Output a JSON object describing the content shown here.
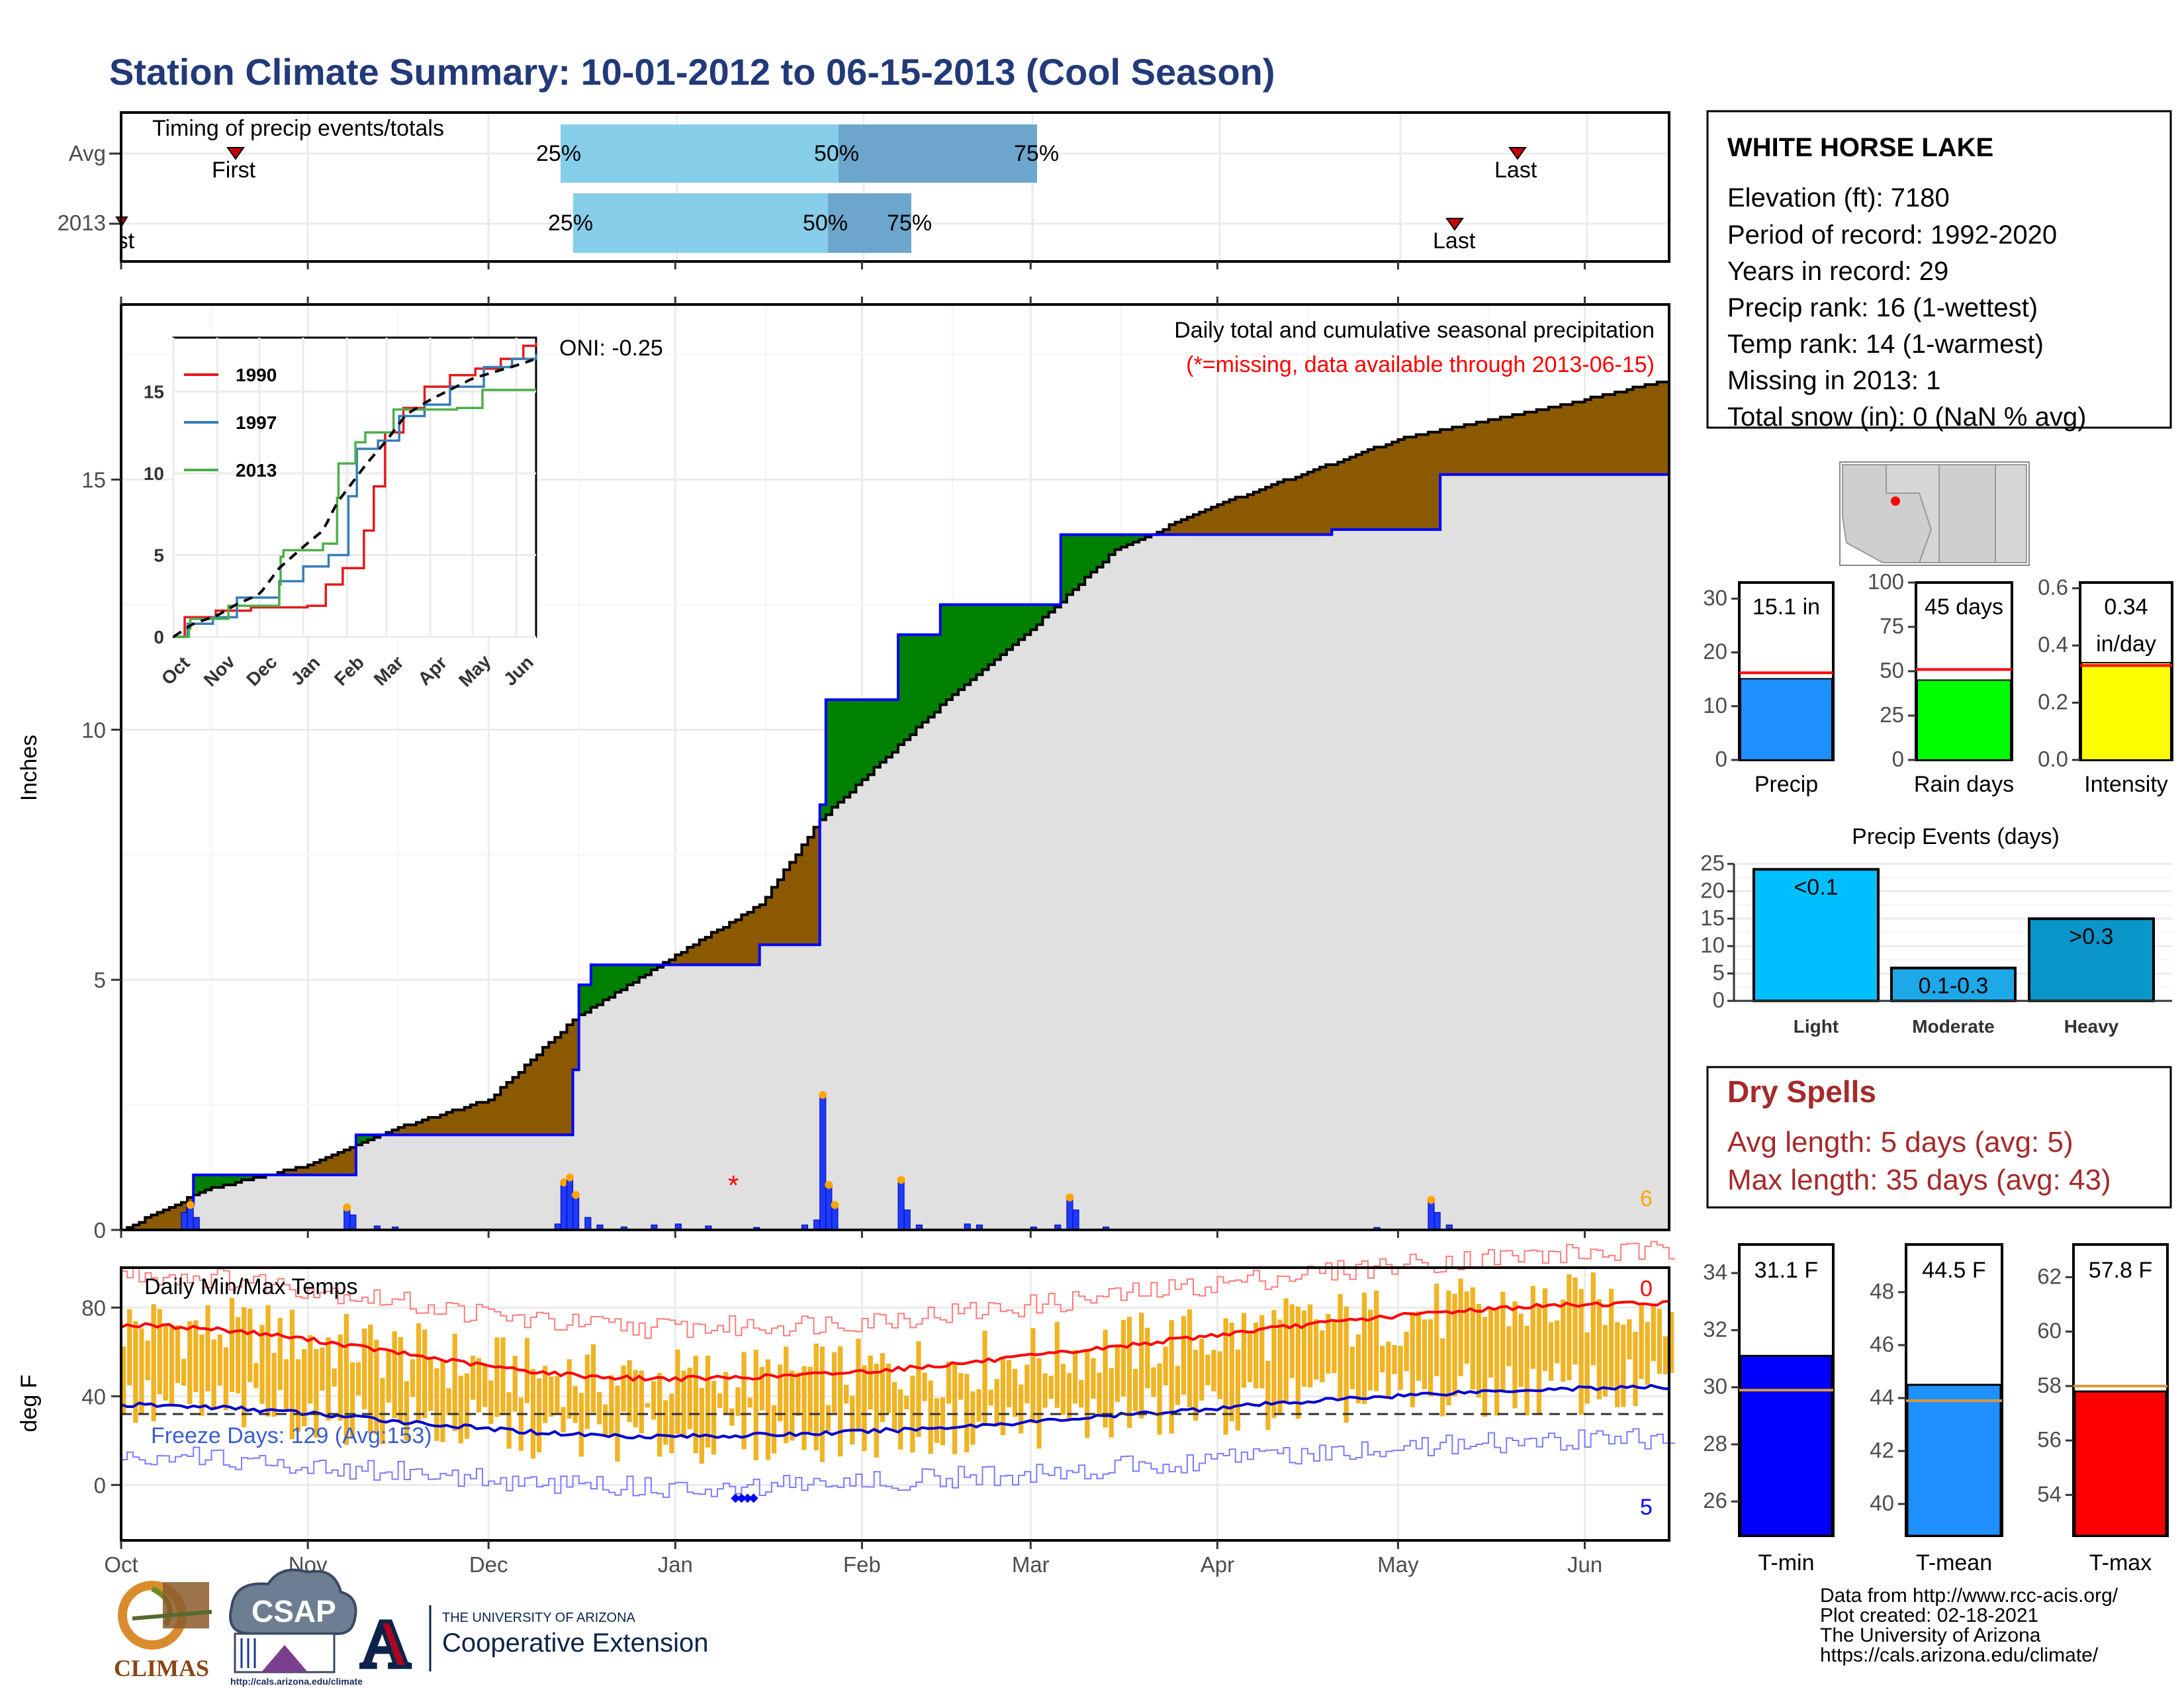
{
  "title": "Station Climate Summary: 10-01-2012 to 06-15-2013 (Cool Season)",
  "timing": {
    "label": "Timing of precip events/totals",
    "rows": [
      "Avg",
      "2013"
    ],
    "avg": {
      "q25": "25%",
      "q50": "50%",
      "q75": "75%",
      "first": "First",
      "last": "Last"
    },
    "y2013": {
      "q25": "25%",
      "q50": "50%",
      "q75": "75%",
      "first": "First",
      "last": "Last"
    }
  },
  "main": {
    "ylabel": "Inches",
    "y_ticks": [
      "0",
      "5",
      "10",
      "15"
    ],
    "oni": "ONI: -0.25",
    "subtitle": "Daily total and cumulative seasonal precipitation",
    "missing_note": "(*=missing, data available through 2013-06-15)",
    "missing_marker": "*",
    "corner_count": "6"
  },
  "inset": {
    "y_ticks": [
      "0",
      "5",
      "10",
      "15"
    ],
    "x_ticks": [
      "Oct",
      "Nov",
      "Dec",
      "Jan",
      "Feb",
      "Mar",
      "Apr",
      "May",
      "Jun"
    ],
    "legend": [
      {
        "name": "1990",
        "color": "#e41a1c"
      },
      {
        "name": "1997",
        "color": "#377eb8"
      },
      {
        "name": "2013",
        "color": "#4daf4a"
      }
    ]
  },
  "temps": {
    "label": "Daily Min/Max Temps",
    "ylabel": "deg F",
    "y_ticks": [
      "0",
      "40",
      "80"
    ],
    "freeze": "Freeze Days: 129 (Avg:153)",
    "hot_count": "0",
    "cold_count": "5"
  },
  "months": [
    "Oct",
    "Nov",
    "Dec",
    "Jan",
    "Feb",
    "Mar",
    "Apr",
    "May",
    "Jun"
  ],
  "station": {
    "name": "WHITE HORSE LAKE",
    "lines": [
      "Elevation (ft): 7180",
      "Period of record: 1992-2020",
      "Years in record: 29",
      "Precip rank: 16 (1-wettest)",
      "Temp rank: 14 (1-warmest)",
      "Missing in 2013: 1",
      "Total snow (in): 0 (NaN % avg)"
    ]
  },
  "mini_bars": [
    {
      "name": "Precip",
      "label": "15.1 in",
      "value": 15.1,
      "avg": 16.2,
      "max": 33,
      "ticks": [
        "0",
        "10",
        "20",
        "30"
      ],
      "color": "#1e90ff"
    },
    {
      "name": "Rain days",
      "label": "45 days",
      "value": 45,
      "avg": 51,
      "max": 100,
      "ticks": [
        "0",
        "25",
        "50",
        "75",
        "100"
      ],
      "color": "#00ff00"
    },
    {
      "name": "Intensity",
      "label": "0.34",
      "label2": "in/day",
      "value": 0.34,
      "avg": 0.33,
      "max": 0.62,
      "ticks": [
        "0.0",
        "0.2",
        "0.4",
        "0.6"
      ],
      "color": "#ffff00"
    }
  ],
  "events": {
    "title": "Precip Events (days)",
    "y_ticks": [
      "0",
      "5",
      "10",
      "15",
      "20",
      "25"
    ],
    "bars": [
      {
        "cat": "Light",
        "label": "<0.1",
        "value": 24,
        "color": "#00bfff"
      },
      {
        "cat": "Moderate",
        "label": "0.1-0.3",
        "value": 6,
        "color": "#1ea8e8"
      },
      {
        "cat": "Heavy",
        "label": ">0.3",
        "value": 15,
        "color": "#0a96c8"
      }
    ]
  },
  "dry_spells": {
    "title": "Dry Spells",
    "avg_length": "Avg length: 5 days (avg: 5)",
    "max_length": "Max length: 35 days (avg: 43)"
  },
  "temp_bars": [
    {
      "name": "T-min",
      "label": "31.1 F",
      "value": 31.1,
      "avg": 29.9,
      "min": 24.8,
      "max": 35,
      "ticks": [
        "26",
        "28",
        "30",
        "32",
        "34"
      ],
      "color": "#0000ff"
    },
    {
      "name": "T-mean",
      "label": "44.5 F",
      "value": 44.5,
      "avg": 43.9,
      "min": 38.8,
      "max": 49.8,
      "ticks": [
        "40",
        "42",
        "44",
        "46",
        "48"
      ],
      "color": "#1e90ff"
    },
    {
      "name": "T-max",
      "label": "57.8 F",
      "value": 57.8,
      "avg": 58.0,
      "min": 52.5,
      "max": 63.2,
      "ticks": [
        "54",
        "56",
        "58",
        "60",
        "62"
      ],
      "color": "#ff0000"
    }
  ],
  "logos": {
    "climas": "CLIMAS",
    "csap": "CSAP",
    "csap_url": "http://cals.arizona.edu/climate",
    "ua_top": "THE UNIVERSITY OF ARIZONA",
    "ua_bottom": "Cooperative Extension",
    "ua_letter": "A"
  },
  "footer": [
    "Data from http://www.rcc-acis.org/",
    "Plot created: 02-18-2021",
    "The University of Arizona",
    "https://cals.arizona.edu/climate/"
  ],
  "chart_data": {
    "type": "area",
    "title": "Daily total and cumulative seasonal precipitation",
    "ylabel": "Inches",
    "ylim": [
      0,
      18.5
    ],
    "x_range": [
      "2012-10-01",
      "2013-06-15"
    ],
    "series": [
      {
        "name": "2013",
        "points": [
          [
            "2012-10-01",
            0
          ],
          [
            "2012-10-12",
            0.5
          ],
          [
            "2012-10-13",
            1.1
          ],
          [
            "2012-11-08",
            1.1
          ],
          [
            "2012-11-09",
            1.9
          ],
          [
            "2012-12-14",
            1.9
          ],
          [
            "2012-12-15",
            3.2
          ],
          [
            "2012-12-16",
            4.9
          ],
          [
            "2012-12-18",
            5.3
          ],
          [
            "2013-01-15",
            5.7
          ],
          [
            "2013-01-24",
            5.7
          ],
          [
            "2013-01-25",
            8.5
          ],
          [
            "2013-01-26",
            10.6
          ],
          [
            "2013-02-06",
            10.6
          ],
          [
            "2013-02-07",
            11.9
          ],
          [
            "2013-02-14",
            12.5
          ],
          [
            "2013-03-01",
            12.5
          ],
          [
            "2013-03-06",
            13.9
          ],
          [
            "2013-04-20",
            14.0
          ],
          [
            "2013-05-07",
            14.0
          ],
          [
            "2013-05-08",
            15.1
          ],
          [
            "2013-06-15",
            15.1
          ]
        ]
      },
      {
        "name": "Avg",
        "points": [
          [
            "2012-10-01",
            0
          ],
          [
            "2012-10-15",
            0.8
          ],
          [
            "2012-11-01",
            1.3
          ],
          [
            "2012-11-15",
            2.0
          ],
          [
            "2012-12-01",
            2.6
          ],
          [
            "2012-12-15",
            4.2
          ],
          [
            "2013-01-01",
            5.5
          ],
          [
            "2013-01-15",
            6.5
          ],
          [
            "2013-01-25",
            8.2
          ],
          [
            "2013-02-15",
            10.6
          ],
          [
            "2013-03-01",
            12.0
          ],
          [
            "2013-03-15",
            13.6
          ],
          [
            "2013-04-01",
            14.5
          ],
          [
            "2013-05-01",
            15.8
          ],
          [
            "2013-06-01",
            16.6
          ],
          [
            "2013-06-15",
            17.0
          ]
        ]
      }
    ],
    "daily_bars": [
      [
        "2012-10-11",
        0.35
      ],
      [
        "2012-10-12",
        0.5
      ],
      [
        "2012-10-13",
        0.25
      ],
      [
        "2012-11-07",
        0.45
      ],
      [
        "2012-11-08",
        0.3
      ],
      [
        "2012-11-12",
        0.08
      ],
      [
        "2012-11-15",
        0.06
      ],
      [
        "2012-12-12",
        0.12
      ],
      [
        "2012-12-13",
        0.95
      ],
      [
        "2012-12-14",
        1.05
      ],
      [
        "2012-12-15",
        0.7
      ],
      [
        "2012-12-17",
        0.25
      ],
      [
        "2012-12-19",
        0.1
      ],
      [
        "2012-12-23",
        0.06
      ],
      [
        "2012-12-28",
        0.1
      ],
      [
        "2013-01-01",
        0.12
      ],
      [
        "2013-01-06",
        0.08
      ],
      [
        "2013-01-14",
        0.05
      ],
      [
        "2013-01-22",
        0.1
      ],
      [
        "2013-01-24",
        0.2
      ],
      [
        "2013-01-25",
        2.7
      ],
      [
        "2013-01-26",
        0.9
      ],
      [
        "2013-01-27",
        0.5
      ],
      [
        "2013-02-07",
        1.0
      ],
      [
        "2013-02-08",
        0.4
      ],
      [
        "2013-02-10",
        0.1
      ],
      [
        "2013-02-18",
        0.12
      ],
      [
        "2013-02-20",
        0.1
      ],
      [
        "2013-03-01",
        0.06
      ],
      [
        "2013-03-05",
        0.1
      ],
      [
        "2013-03-07",
        0.65
      ],
      [
        "2013-03-08",
        0.4
      ],
      [
        "2013-03-13",
        0.06
      ],
      [
        "2013-04-27",
        0.05
      ],
      [
        "2013-05-06",
        0.6
      ],
      [
        "2013-05-07",
        0.35
      ],
      [
        "2013-05-09",
        0.1
      ]
    ],
    "temps": {
      "ylim": [
        -25,
        98
      ],
      "max_avg_start": 72,
      "max_avg_min": 48,
      "max_avg_end": 82,
      "min_avg_start": 36,
      "min_avg_min": 22,
      "min_avg_end": 44
    }
  }
}
